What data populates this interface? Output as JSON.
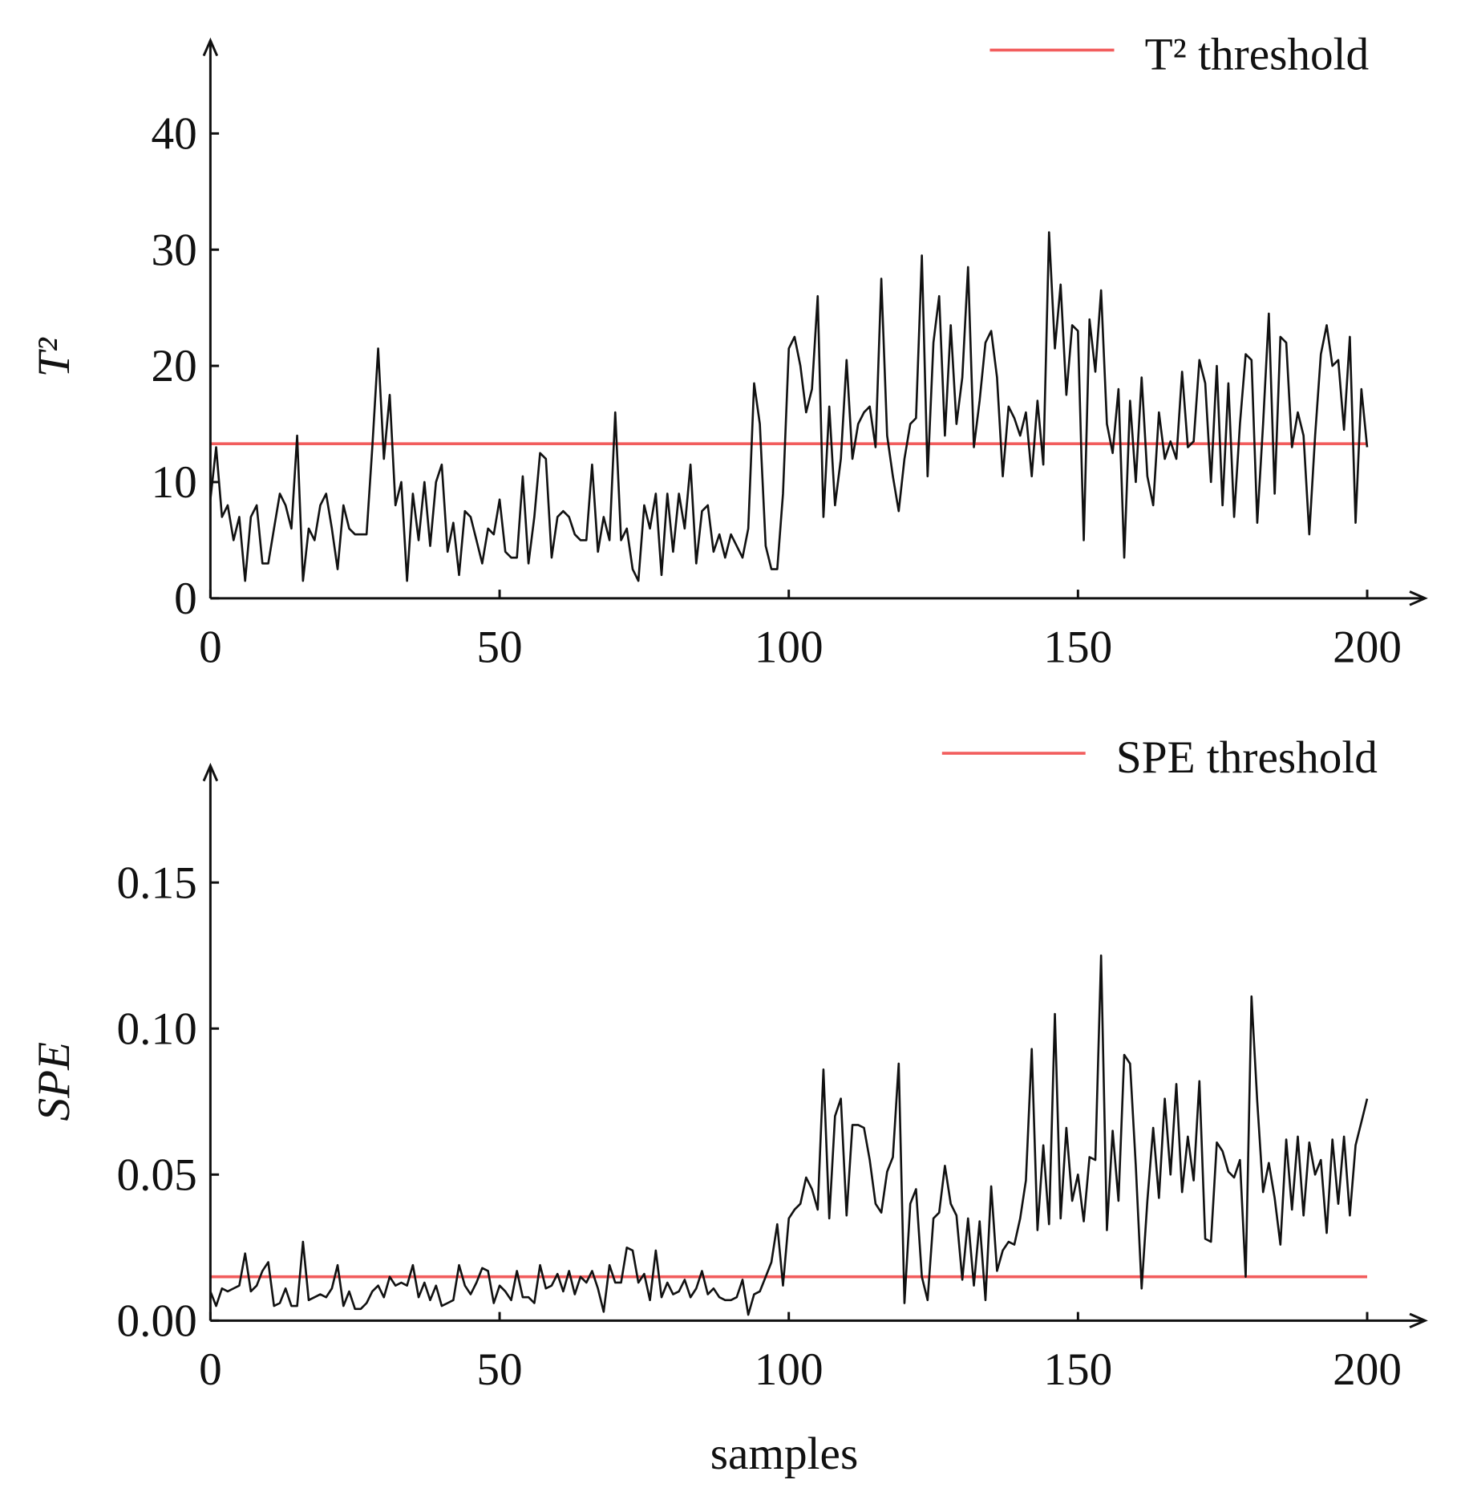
{
  "chart_data": [
    {
      "type": "line",
      "ylabel": "T²",
      "x": [
        0,
        1,
        2,
        3,
        4,
        5,
        6,
        7,
        8,
        9,
        10,
        11,
        12,
        13,
        14,
        15,
        16,
        17,
        18,
        19,
        20,
        21,
        22,
        23,
        24,
        25,
        26,
        27,
        28,
        29,
        30,
        31,
        32,
        33,
        34,
        35,
        36,
        37,
        38,
        39,
        40,
        41,
        42,
        43,
        44,
        45,
        46,
        47,
        48,
        49,
        50,
        51,
        52,
        53,
        54,
        55,
        56,
        57,
        58,
        59,
        60,
        61,
        62,
        63,
        64,
        65,
        66,
        67,
        68,
        69,
        70,
        71,
        72,
        73,
        74,
        75,
        76,
        77,
        78,
        79,
        80,
        81,
        82,
        83,
        84,
        85,
        86,
        87,
        88,
        89,
        90,
        91,
        92,
        93,
        94,
        95,
        96,
        97,
        98,
        99,
        100,
        101,
        102,
        103,
        104,
        105,
        106,
        107,
        108,
        109,
        110,
        111,
        112,
        113,
        114,
        115,
        116,
        117,
        118,
        119,
        120,
        121,
        122,
        123,
        124,
        125,
        126,
        127,
        128,
        129,
        130,
        131,
        132,
        133,
        134,
        135,
        136,
        137,
        138,
        139,
        140,
        141,
        142,
        143,
        144,
        145,
        146,
        147,
        148,
        149,
        150,
        151,
        152,
        153,
        154,
        155,
        156,
        157,
        158,
        159,
        160,
        161,
        162,
        163,
        164,
        165,
        166,
        167,
        168,
        169,
        170,
        171,
        172,
        173,
        174,
        175,
        176,
        177,
        178,
        179,
        180,
        181,
        182,
        183,
        184,
        185,
        186,
        187,
        188,
        189,
        190,
        191,
        192,
        193,
        194,
        195,
        196,
        197,
        198,
        199,
        200
      ],
      "series": [
        {
          "color": "#111111",
          "values": [
            8.5,
            13,
            7,
            8,
            5,
            7,
            1.5,
            7,
            8,
            3,
            3,
            6,
            9,
            8,
            6,
            14,
            1.5,
            6,
            5,
            8,
            9,
            6,
            2.5,
            8,
            6,
            5.5,
            5.5,
            5.5,
            13,
            21.5,
            12,
            17.5,
            8,
            10,
            1.5,
            9,
            5,
            10,
            4.5,
            10,
            11.5,
            4,
            6.5,
            2,
            7.5,
            7,
            5,
            3,
            6,
            5.5,
            8.5,
            4,
            3.5,
            3.5,
            10.5,
            3,
            7,
            12.5,
            12,
            3.5,
            7,
            7.5,
            7,
            5.5,
            5,
            5,
            11.5,
            4,
            7,
            5,
            16,
            5,
            6,
            2.5,
            1.5,
            8,
            6,
            9,
            2,
            9,
            4,
            9,
            6,
            11.5,
            3,
            7.5,
            8,
            4,
            5.5,
            3.5,
            5.5,
            4.5,
            3.5,
            6,
            18.5,
            15,
            4.5,
            2.5,
            2.5,
            9,
            21.5,
            22.5,
            20,
            16,
            18,
            26,
            7,
            16.5,
            8,
            12,
            20.5,
            12,
            15,
            16,
            16.5,
            13,
            27.5,
            14,
            10.5,
            7.5,
            12,
            15,
            15.5,
            29.5,
            10.5,
            22,
            26,
            14,
            23.5,
            15,
            19,
            28.5,
            13,
            17,
            22,
            23,
            19,
            10.5,
            16.5,
            15.5,
            14,
            16,
            10.5,
            17,
            11.5,
            31.5,
            21.5,
            27,
            17.5,
            23.5,
            23,
            5,
            24,
            19.5,
            26.5,
            15,
            12.5,
            18,
            3.5,
            17,
            10,
            19,
            10.5,
            8,
            16,
            12,
            13.5,
            12,
            19.5,
            13,
            13.5,
            20.5,
            18.5,
            10,
            20,
            8,
            18.5,
            7,
            15,
            21,
            20.5,
            6.5,
            15,
            24.5,
            9,
            22.5,
            22,
            13,
            16,
            14,
            5.5,
            14,
            21,
            23.5,
            20,
            20.5,
            14.5,
            22.5,
            6.5,
            18,
            13
          ]
        }
      ],
      "threshold": {
        "name": "T² threshold",
        "value": 13.3,
        "color": "#f25d5d"
      },
      "xlim": [
        0,
        210
      ],
      "ylim": [
        0,
        48
      ],
      "xticks": [
        0,
        50,
        100,
        150,
        200
      ],
      "yticks": [
        0,
        10,
        20,
        30,
        40
      ]
    },
    {
      "type": "line",
      "ylabel": "SPE",
      "xlabel": "samples",
      "x": [
        0,
        1,
        2,
        3,
        4,
        5,
        6,
        7,
        8,
        9,
        10,
        11,
        12,
        13,
        14,
        15,
        16,
        17,
        18,
        19,
        20,
        21,
        22,
        23,
        24,
        25,
        26,
        27,
        28,
        29,
        30,
        31,
        32,
        33,
        34,
        35,
        36,
        37,
        38,
        39,
        40,
        41,
        42,
        43,
        44,
        45,
        46,
        47,
        48,
        49,
        50,
        51,
        52,
        53,
        54,
        55,
        56,
        57,
        58,
        59,
        60,
        61,
        62,
        63,
        64,
        65,
        66,
        67,
        68,
        69,
        70,
        71,
        72,
        73,
        74,
        75,
        76,
        77,
        78,
        79,
        80,
        81,
        82,
        83,
        84,
        85,
        86,
        87,
        88,
        89,
        90,
        91,
        92,
        93,
        94,
        95,
        96,
        97,
        98,
        99,
        100,
        101,
        102,
        103,
        104,
        105,
        106,
        107,
        108,
        109,
        110,
        111,
        112,
        113,
        114,
        115,
        116,
        117,
        118,
        119,
        120,
        121,
        122,
        123,
        124,
        125,
        126,
        127,
        128,
        129,
        130,
        131,
        132,
        133,
        134,
        135,
        136,
        137,
        138,
        139,
        140,
        141,
        142,
        143,
        144,
        145,
        146,
        147,
        148,
        149,
        150,
        151,
        152,
        153,
        154,
        155,
        156,
        157,
        158,
        159,
        160,
        161,
        162,
        163,
        164,
        165,
        166,
        167,
        168,
        169,
        170,
        171,
        172,
        173,
        174,
        175,
        176,
        177,
        178,
        179,
        180,
        181,
        182,
        183,
        184,
        185,
        186,
        187,
        188,
        189,
        190,
        191,
        192,
        193,
        194,
        195,
        196,
        197,
        198,
        199,
        200
      ],
      "series": [
        {
          "color": "#111111",
          "values": [
            0.01,
            0.005,
            0.011,
            0.01,
            0.011,
            0.012,
            0.023,
            0.01,
            0.012,
            0.017,
            0.02,
            0.005,
            0.006,
            0.011,
            0.005,
            0.005,
            0.027,
            0.007,
            0.008,
            0.009,
            0.008,
            0.011,
            0.019,
            0.005,
            0.01,
            0.004,
            0.004,
            0.006,
            0.01,
            0.012,
            0.008,
            0.015,
            0.012,
            0.013,
            0.012,
            0.019,
            0.008,
            0.013,
            0.007,
            0.012,
            0.005,
            0.006,
            0.007,
            0.019,
            0.012,
            0.009,
            0.013,
            0.018,
            0.017,
            0.006,
            0.012,
            0.01,
            0.007,
            0.017,
            0.008,
            0.008,
            0.006,
            0.019,
            0.011,
            0.012,
            0.016,
            0.01,
            0.017,
            0.009,
            0.015,
            0.013,
            0.017,
            0.011,
            0.003,
            0.019,
            0.013,
            0.013,
            0.025,
            0.024,
            0.013,
            0.016,
            0.007,
            0.024,
            0.008,
            0.013,
            0.009,
            0.01,
            0.014,
            0.008,
            0.011,
            0.017,
            0.009,
            0.011,
            0.008,
            0.007,
            0.007,
            0.008,
            0.014,
            0.002,
            0.009,
            0.01,
            0.015,
            0.02,
            0.033,
            0.012,
            0.035,
            0.038,
            0.04,
            0.049,
            0.045,
            0.038,
            0.086,
            0.035,
            0.07,
            0.076,
            0.036,
            0.067,
            0.067,
            0.066,
            0.055,
            0.04,
            0.037,
            0.051,
            0.056,
            0.088,
            0.006,
            0.04,
            0.045,
            0.015,
            0.007,
            0.035,
            0.037,
            0.053,
            0.04,
            0.036,
            0.014,
            0.035,
            0.012,
            0.034,
            0.007,
            0.046,
            0.017,
            0.024,
            0.027,
            0.026,
            0.035,
            0.048,
            0.093,
            0.031,
            0.06,
            0.033,
            0.105,
            0.035,
            0.066,
            0.041,
            0.05,
            0.034,
            0.056,
            0.055,
            0.125,
            0.031,
            0.065,
            0.041,
            0.091,
            0.088,
            0.053,
            0.011,
            0.041,
            0.066,
            0.042,
            0.076,
            0.05,
            0.081,
            0.044,
            0.063,
            0.048,
            0.082,
            0.028,
            0.027,
            0.061,
            0.058,
            0.051,
            0.049,
            0.055,
            0.015,
            0.111,
            0.075,
            0.044,
            0.054,
            0.042,
            0.026,
            0.062,
            0.038,
            0.063,
            0.036,
            0.061,
            0.05,
            0.055,
            0.03,
            0.062,
            0.04,
            0.063,
            0.036,
            0.06,
            0.068,
            0.076
          ]
        }
      ],
      "threshold": {
        "name": "SPE threshold",
        "value": 0.015,
        "color": "#f25d5d"
      },
      "xlim": [
        0,
        210
      ],
      "ylim": [
        0,
        0.19
      ],
      "xticks": [
        0,
        50,
        100,
        150,
        200
      ],
      "yticks": [
        {
          "value": 0,
          "label": "0.00"
        },
        0.05,
        {
          "value": 0.1,
          "label": "0.10"
        },
        0.15
      ]
    }
  ]
}
